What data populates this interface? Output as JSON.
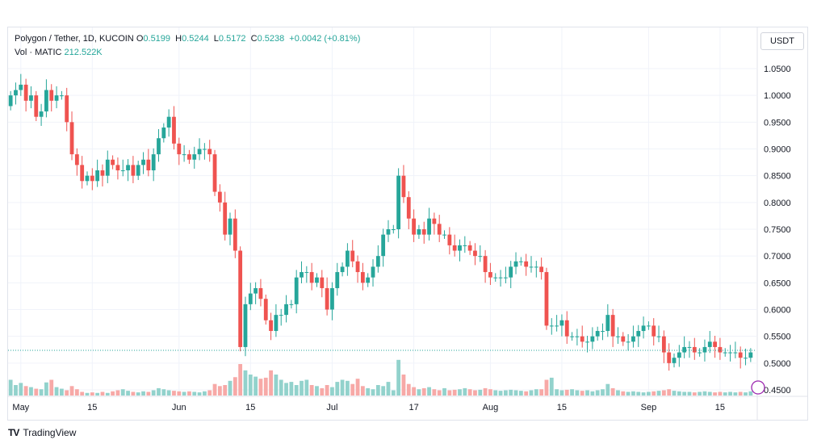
{
  "legend": {
    "symbol": "Polygon / Tether, 1D, KUCOIN",
    "open_label": "O",
    "open": "0.5199",
    "high_label": "H",
    "high": "0.5244",
    "low_label": "L",
    "low": "0.5172",
    "close_label": "C",
    "close": "0.5238",
    "change": "+0.0042 (+0.81%)",
    "vol_label": "Vol · MATIC",
    "vol": "212.522K"
  },
  "currency_button": "USDT",
  "brand": {
    "logo": "TV",
    "name": "TradingView"
  },
  "colors": {
    "up": "#26a69a",
    "down": "#ef5350",
    "up_vol": "#92d2cc",
    "down_vol": "#f7a9a7",
    "grid": "#f0f3fa",
    "price_line": "#26a69a"
  },
  "chart_data": {
    "type": "candlestick",
    "title": "Polygon / Tether, 1D, KUCOIN",
    "y_axis_labels": [
      "1.0500",
      "1.0000",
      "0.9500",
      "0.9000",
      "0.8500",
      "0.8000",
      "0.7500",
      "0.7000",
      "0.6500",
      "0.6000",
      "0.5500",
      "0.5000",
      "0.4500"
    ],
    "ylim": [
      0.45,
      1.07
    ],
    "x_axis_labels": [
      {
        "label": "May",
        "index": 2
      },
      {
        "label": "15",
        "index": 16
      },
      {
        "label": "Jun",
        "index": 33
      },
      {
        "label": "15",
        "index": 47
      },
      {
        "label": "Jul",
        "index": 63
      },
      {
        "label": "17",
        "index": 79
      },
      {
        "label": "Aug",
        "index": 94
      },
      {
        "label": "15",
        "index": 108
      },
      {
        "label": "Sep",
        "index": 125
      },
      {
        "label": "15",
        "index": 139
      }
    ],
    "last_price": 0.5238,
    "grid": true,
    "close": [
      1.0,
      1.01,
      1.02,
      0.99,
      1.0,
      0.96,
      0.97,
      1.01,
      0.99,
      1.0,
      1.0,
      0.95,
      0.89,
      0.87,
      0.84,
      0.85,
      0.84,
      0.86,
      0.85,
      0.88,
      0.87,
      0.86,
      0.86,
      0.87,
      0.85,
      0.87,
      0.88,
      0.86,
      0.89,
      0.92,
      0.94,
      0.96,
      0.91,
      0.89,
      0.89,
      0.88,
      0.89,
      0.9,
      0.9,
      0.89,
      0.82,
      0.8,
      0.74,
      0.77,
      0.71,
      0.53,
      0.61,
      0.63,
      0.64,
      0.62,
      0.58,
      0.56,
      0.59,
      0.59,
      0.61,
      0.61,
      0.66,
      0.67,
      0.67,
      0.65,
      0.66,
      0.64,
      0.6,
      0.64,
      0.67,
      0.68,
      0.71,
      0.69,
      0.67,
      0.65,
      0.66,
      0.68,
      0.7,
      0.74,
      0.75,
      0.75,
      0.85,
      0.81,
      0.77,
      0.74,
      0.75,
      0.74,
      0.77,
      0.76,
      0.74,
      0.74,
      0.72,
      0.71,
      0.72,
      0.72,
      0.71,
      0.7,
      0.7,
      0.67,
      0.66,
      0.66,
      0.66,
      0.66,
      0.68,
      0.69,
      0.69,
      0.68,
      0.68,
      0.68,
      0.67,
      0.57,
      0.57,
      0.57,
      0.58,
      0.55,
      0.55,
      0.55,
      0.54,
      0.54,
      0.55,
      0.56,
      0.56,
      0.59,
      0.55,
      0.55,
      0.54,
      0.54,
      0.55,
      0.56,
      0.57,
      0.57,
      0.55,
      0.55,
      0.52,
      0.5,
      0.51,
      0.52,
      0.53,
      0.53,
      0.52,
      0.52,
      0.53,
      0.54,
      0.53,
      0.52,
      0.52,
      0.52,
      0.52,
      0.51,
      0.51,
      0.52
    ],
    "volume": [
      0.3,
      0.2,
      0.24,
      0.18,
      0.16,
      0.13,
      0.12,
      0.25,
      0.3,
      0.16,
      0.13,
      0.1,
      0.18,
      0.12,
      0.07,
      0.05,
      0.06,
      0.05,
      0.07,
      0.05,
      0.08,
      0.1,
      0.12,
      0.09,
      0.07,
      0.06,
      0.08,
      0.07,
      0.1,
      0.14,
      0.12,
      0.1,
      0.09,
      0.08,
      0.07,
      0.08,
      0.07,
      0.06,
      0.08,
      0.1,
      0.22,
      0.18,
      0.2,
      0.28,
      0.35,
      0.6,
      0.48,
      0.4,
      0.36,
      0.32,
      0.34,
      0.48,
      0.4,
      0.3,
      0.24,
      0.26,
      0.2,
      0.28,
      0.3,
      0.2,
      0.18,
      0.14,
      0.2,
      0.16,
      0.26,
      0.3,
      0.28,
      0.22,
      0.32,
      0.18,
      0.14,
      0.12,
      0.2,
      0.18,
      0.26,
      0.1,
      0.68,
      0.4,
      0.22,
      0.16,
      0.12,
      0.14,
      0.16,
      0.12,
      0.1,
      0.14,
      0.1,
      0.11,
      0.12,
      0.14,
      0.12,
      0.1,
      0.11,
      0.14,
      0.12,
      0.1,
      0.09,
      0.1,
      0.11,
      0.1,
      0.09,
      0.08,
      0.1,
      0.12,
      0.12,
      0.3,
      0.34,
      0.12,
      0.1,
      0.11,
      0.12,
      0.1,
      0.09,
      0.1,
      0.08,
      0.1,
      0.12,
      0.22,
      0.14,
      0.1,
      0.08,
      0.07,
      0.08,
      0.07,
      0.06,
      0.07,
      0.08,
      0.09,
      0.1,
      0.12,
      0.09,
      0.08,
      0.07,
      0.07,
      0.06,
      0.07,
      0.08,
      0.07,
      0.06,
      0.07,
      0.06,
      0.07,
      0.06,
      0.07,
      0.06,
      0.08
    ]
  }
}
